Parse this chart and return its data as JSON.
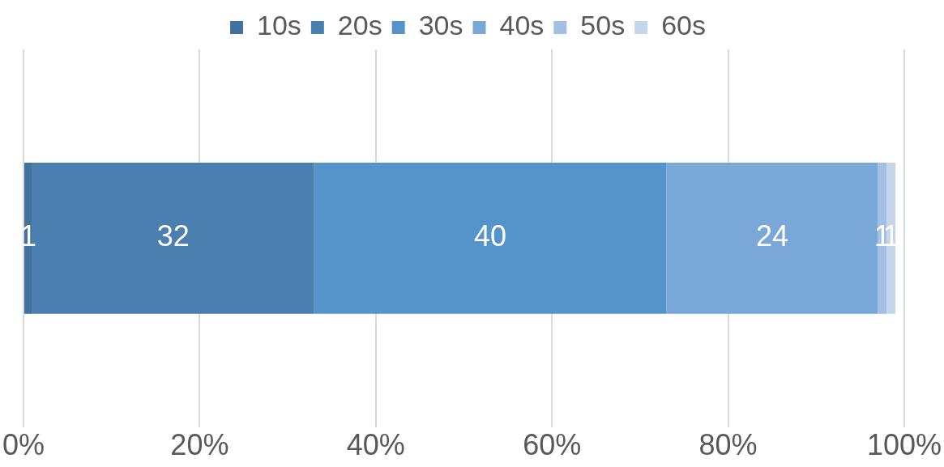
{
  "chart_data": {
    "type": "bar",
    "orientation": "horizontal",
    "stacked": true,
    "categories": [
      null
    ],
    "series": [
      {
        "name": "10s",
        "color": "#41719c",
        "values": [
          1
        ]
      },
      {
        "name": "20s",
        "color": "#4a7fb0",
        "values": [
          32
        ]
      },
      {
        "name": "30s",
        "color": "#5593cb",
        "values": [
          40
        ]
      },
      {
        "name": "40s",
        "color": "#79a7d8",
        "values": [
          24
        ]
      },
      {
        "name": "50s",
        "color": "#a3bfe2",
        "values": [
          1
        ]
      },
      {
        "name": "60s",
        "color": "#c5d5ea",
        "values": [
          1
        ]
      }
    ],
    "xlim": [
      0,
      100
    ],
    "xticks": [
      {
        "value": 0,
        "label": "0%"
      },
      {
        "value": 20,
        "label": "20%"
      },
      {
        "value": 40,
        "label": "40%"
      },
      {
        "value": 60,
        "label": "60%"
      },
      {
        "value": 80,
        "label": "80%"
      },
      {
        "value": 100,
        "label": "100%"
      }
    ],
    "grid": "x",
    "legend": "top",
    "data_labels": true
  }
}
